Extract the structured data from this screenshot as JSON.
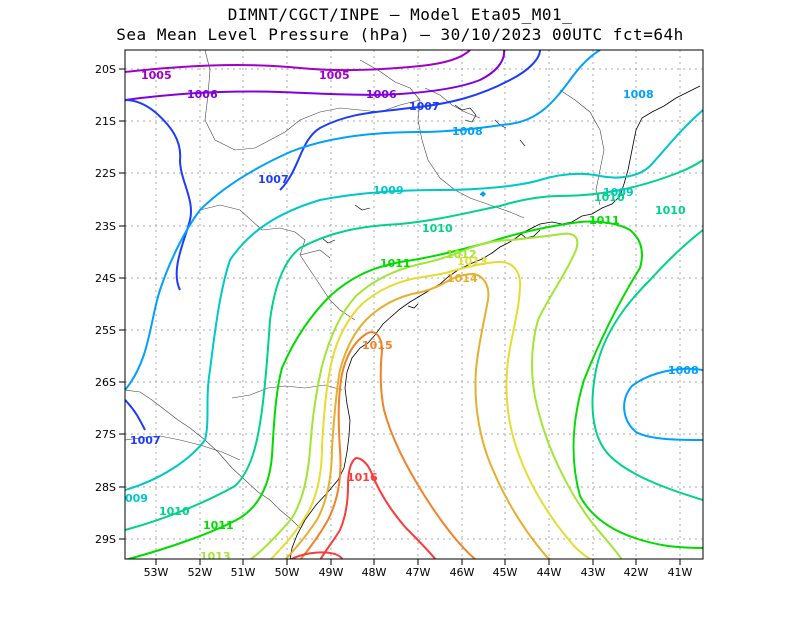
{
  "title": {
    "line1": "DIMNT/CGCT/INPE –  Model Eta05_M01_",
    "line2": "Sea Mean Level Pressure (hPa) – 30/10/2023 00UTC fct=64h"
  },
  "map": {
    "lon_range": [
      -53.7,
      -40.5
    ],
    "lat_range": [
      -29.4,
      -19.8
    ],
    "lon_ticks": [
      "53W",
      "52W",
      "51W",
      "50W",
      "49W",
      "48W",
      "47W",
      "46W",
      "45W",
      "44W",
      "43W",
      "42W",
      "41W"
    ],
    "lat_ticks": [
      "20S",
      "21S",
      "22S",
      "23S",
      "24S",
      "25S",
      "26S",
      "27S",
      "28S",
      "29S"
    ],
    "grid": true,
    "contour_labels": {
      "c1005a": "1005",
      "c1005b": "1005",
      "c1006a": "1006",
      "c1006b": "1006",
      "c1007a": "1007",
      "c1007b": "1007",
      "c1007c": "1007",
      "c1008a": "1008",
      "c1008b": "1008",
      "c1008c": "1008",
      "c1009a": "1009",
      "c1009b": "1009",
      "c1009c": "009",
      "c1010a": "1010",
      "c1010b": "1010",
      "c1010c": "1010",
      "c1010d": "1010",
      "c1011a": "1011",
      "c1011b": "1011",
      "c1011c": "1011",
      "c1012a": "1012",
      "c1012b": "1013",
      "c1013a": "1013",
      "c1014a": "1014",
      "c1015a": "1015",
      "c1016a": "1016"
    },
    "colors": {
      "1005": "#a000c8",
      "1006": "#8200dc",
      "1007": "#1e3cff",
      "1008": "#00a0ff",
      "1009": "#00c8c8",
      "1010": "#00d28c",
      "1011": "#00dc00",
      "1012": "#a0e632",
      "1013": "#e6dc32",
      "1014": "#e6af2d",
      "1015": "#f08228",
      "1016": "#fa3c3c"
    }
  }
}
